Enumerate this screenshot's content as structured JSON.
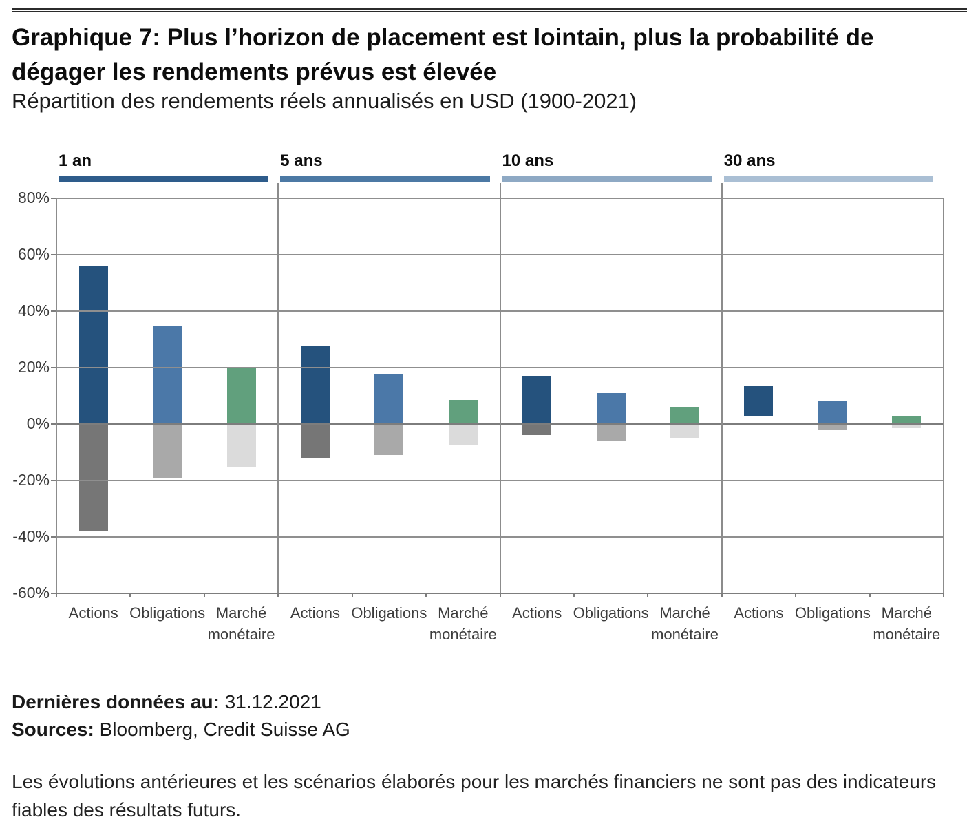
{
  "header": {
    "title": "Graphique 7: Plus l’horizon de placement est lointain, plus la probabilité de dégager les rendements prévus est élevée",
    "subtitle": "Répartition des rendements réels annualisés en USD (1900-2021)"
  },
  "chart_data": {
    "type": "bar",
    "title": "Répartition des rendements réels annualisés en USD (1900-2021)",
    "unit": "rendement réel annualisé en %",
    "categories": [
      "Actions",
      "Obligations",
      "Marché monétaire"
    ],
    "y_tick_labels": [
      "80%",
      "60%",
      "40%",
      "20%",
      "0%",
      "-20%",
      "-40%",
      "-60%"
    ],
    "ylim": [
      -60,
      80
    ],
    "grid": true,
    "legend_position": "none",
    "bar_colors_positive": [
      "#25527d",
      "#4b78a8",
      "#61a07d"
    ],
    "bar_colors_negative": [
      "#767676",
      "#a9a9a9",
      "#dbdbdb"
    ],
    "panels": [
      {
        "label": "1 an",
        "header_color": "#2e5c8b",
        "bars": [
          {
            "category": "Actions",
            "max": 56,
            "min": -38
          },
          {
            "category": "Obligations",
            "max": 35,
            "min": -19
          },
          {
            "category": "Marché monétaire",
            "max": 20,
            "min": -15
          }
        ]
      },
      {
        "label": "5 ans",
        "header_color": "#4c79a4",
        "bars": [
          {
            "category": "Actions",
            "max": 27.5,
            "min": -12
          },
          {
            "category": "Obligations",
            "max": 17.5,
            "min": -11
          },
          {
            "category": "Marché monétaire",
            "max": 8.5,
            "min": -7.5
          }
        ]
      },
      {
        "label": "10 ans",
        "header_color": "#8ea9c4",
        "bars": [
          {
            "category": "Actions",
            "max": 17,
            "min": -4
          },
          {
            "category": "Obligations",
            "max": 11,
            "min": -6
          },
          {
            "category": "Marché monétaire",
            "max": 6,
            "min": -5
          }
        ]
      },
      {
        "label": "30 ans",
        "header_color": "#aabfd4",
        "bars": [
          {
            "category": "Actions",
            "max": 13.5,
            "min": 3
          },
          {
            "category": "Obligations",
            "max": 8,
            "min": -2
          },
          {
            "category": "Marché monétaire",
            "max": 3,
            "min": -1.5
          }
        ]
      }
    ]
  },
  "footer": {
    "last_data_label": "Dernières données au:",
    "last_data_value": "31.12.2021",
    "sources_label": "Sources:",
    "sources_value": "Bloomberg, Credit Suisse AG",
    "disclaimer": "Les évolutions antérieures et les scénarios élaborés pour les marchés financiers ne sont pas des indicateurs fiables des résultats futurs."
  }
}
